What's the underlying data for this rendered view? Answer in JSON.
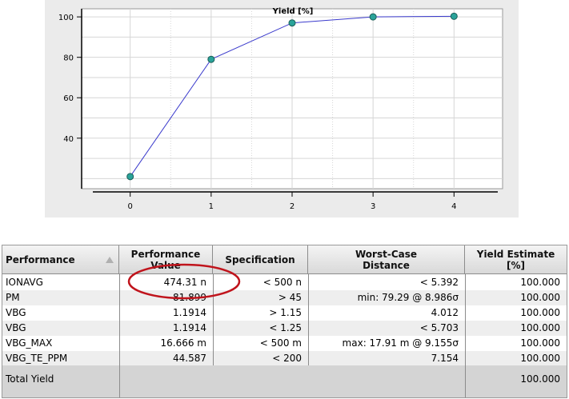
{
  "chart_data": {
    "type": "line",
    "title": "Yield [%]",
    "x": [
      0,
      1,
      2,
      3,
      4
    ],
    "series": [
      {
        "values": [
          21,
          79,
          97,
          100,
          100.3
        ]
      }
    ],
    "xlim": [
      -0.6,
      4.6
    ],
    "ylim": [
      15,
      104
    ],
    "xticks": [
      "0",
      "1",
      "2",
      "3",
      "4"
    ],
    "yticks": [
      "40",
      "60",
      "80",
      "100"
    ],
    "grid": true,
    "colors": {
      "line": "#3a3acc",
      "marker": "#2aa39a"
    }
  },
  "table": {
    "headers": {
      "performance": "Performance",
      "value_line1": "Performance",
      "value_line2": "Value",
      "specification": "Specification",
      "wcd_line1": "Worst-Case",
      "wcd_line2": "Distance",
      "yield_line1": "Yield Estimate",
      "yield_line2": "[%]"
    },
    "rows": [
      {
        "name": "IONAVG",
        "value": "474.31 n",
        "spec": "< 500 n",
        "wcd": "<   5.392",
        "yield": "100.000"
      },
      {
        "name": "PM",
        "value": "81.899",
        "spec": "> 45",
        "wcd": "min: 79.29 @ 8.986σ",
        "yield": "100.000"
      },
      {
        "name": "VBG",
        "value": "1.1914",
        "spec": "> 1.15",
        "wcd": "4.012",
        "yield": "100.000"
      },
      {
        "name": "VBG",
        "value": "1.1914",
        "spec": "< 1.25",
        "wcd": "<   5.703",
        "yield": "100.000"
      },
      {
        "name": "VBG_MAX",
        "value": "16.666 m",
        "spec": "< 500 m",
        "wcd": "max: 17.91 m @ 9.155σ",
        "yield": "100.000"
      },
      {
        "name": "VBG_TE_PPM",
        "value": "44.587",
        "spec": "< 200",
        "wcd": "7.154",
        "yield": "100.000"
      }
    ],
    "total": {
      "label": "Total Yield",
      "yield": "100.000"
    }
  },
  "annotation": {
    "color": "#c0141c"
  }
}
